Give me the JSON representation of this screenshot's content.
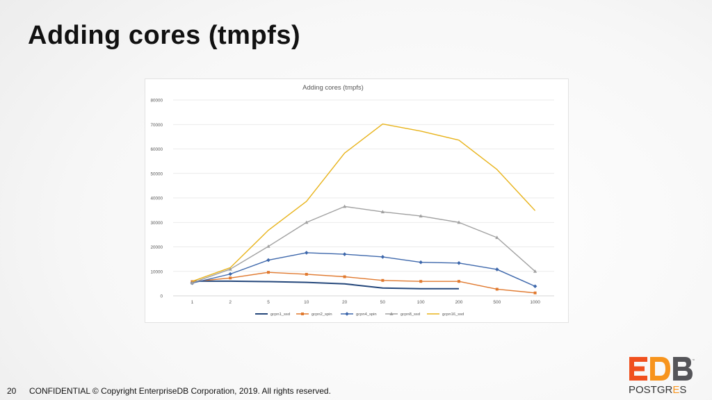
{
  "slide": {
    "title": "Adding cores (tmpfs)",
    "page_number": "20",
    "footer": "CONFIDENTIAL © Copyright EnterpriseDB Corporation, 2019. All rights reserved."
  },
  "logo": {
    "brand": "EDB",
    "sub_prefix": "POSTGR",
    "sub_accent": "E",
    "sub_suffix": "S",
    "trademark": "™",
    "colors": {
      "e": "#f0501e",
      "d": "#f7941d",
      "b": "#555559",
      "accent": "#f7941d"
    }
  },
  "chart_data": {
    "type": "line",
    "title": "Adding cores (tmpfs)",
    "xlabel": "",
    "ylabel": "",
    "categories": [
      "1",
      "2",
      "5",
      "10",
      "20",
      "50",
      "100",
      "200",
      "500",
      "1000"
    ],
    "ylim": [
      0,
      80000
    ],
    "yticks": [
      0,
      10000,
      20000,
      30000,
      40000,
      50000,
      60000,
      70000,
      80000
    ],
    "yticks_labels": [
      "0",
      "10000",
      "20000",
      "30000",
      "40000",
      "50000",
      "60000",
      "70000",
      "80000"
    ],
    "grid": true,
    "legend_position": "bottom",
    "series": [
      {
        "name": "gcpn1_ssd",
        "color": "#23467a",
        "marker": "none",
        "values": [
          6000,
          6000,
          5800,
          5500,
          4900,
          3200,
          2900,
          2900,
          null,
          null
        ]
      },
      {
        "name": "gcpn2_spin",
        "color": "#e0782d",
        "marker": "square",
        "values": [
          5800,
          7300,
          9600,
          8800,
          7800,
          6300,
          5900,
          5900,
          2700,
          1200
        ]
      },
      {
        "name": "gcpn4_spin",
        "color": "#3d67ab",
        "marker": "diamond",
        "values": [
          5200,
          8900,
          14600,
          17600,
          17000,
          15900,
          13700,
          13400,
          10800,
          3900
        ]
      },
      {
        "name": "gcpn8_ssd",
        "color": "#a0a0a0",
        "marker": "triangle",
        "values": [
          5300,
          10900,
          20200,
          30000,
          36500,
          34300,
          32600,
          30000,
          23800,
          10000
        ]
      },
      {
        "name": "gcpn16_ssd",
        "color": "#e8b31a",
        "marker": "none",
        "values": [
          5900,
          11500,
          26800,
          38600,
          58300,
          70200,
          67300,
          63600,
          51600,
          34800
        ]
      }
    ]
  }
}
